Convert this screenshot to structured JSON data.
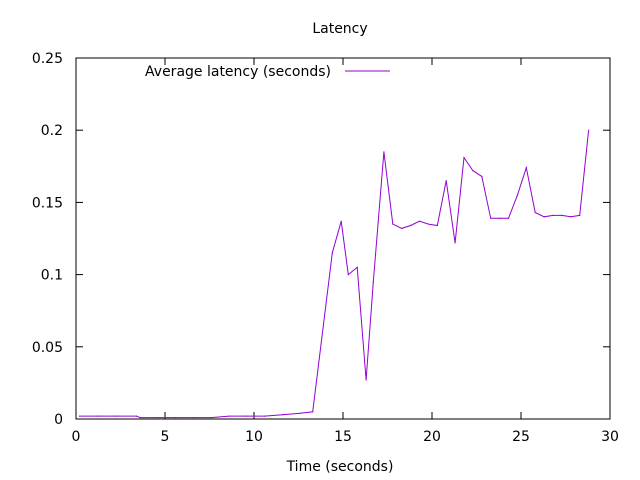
{
  "chart_data": {
    "type": "line",
    "title": "Latency",
    "xlabel": "Time (seconds)",
    "ylabel": "",
    "xlim": [
      0,
      30
    ],
    "ylim": [
      0,
      0.25
    ],
    "xticks": [
      0,
      5,
      10,
      15,
      20,
      25,
      30
    ],
    "xtick_labels": [
      "0",
      "5",
      "10",
      "15",
      "20",
      "25",
      "30"
    ],
    "yticks": [
      0,
      0.05,
      0.1,
      0.15,
      0.2,
      0.25
    ],
    "ytick_labels": [
      "0",
      "0.05",
      "0.1",
      "0.15",
      "0.2",
      "0.25"
    ],
    "grid": false,
    "legend_position": "top-center",
    "series": [
      {
        "name": "Average latency (seconds)",
        "color": "#9400d3",
        "x": [
          0.2,
          1.2,
          2.2,
          3.4,
          3.6,
          4.6,
          5.6,
          6.6,
          7.6,
          8.6,
          9.6,
          10.6,
          11.6,
          12.6,
          13.3,
          14.4,
          14.9,
          15.3,
          15.8,
          16.3,
          16.7,
          17.3,
          17.8,
          18.3,
          18.8,
          19.3,
          19.8,
          20.3,
          20.8,
          21.3,
          21.8,
          22.3,
          22.8,
          23.3,
          23.8,
          24.3,
          24.8,
          25.3,
          25.8,
          26.3,
          26.8,
          27.3,
          27.8,
          28.3,
          28.8
        ],
        "values": [
          0.002,
          0.002,
          0.002,
          0.002,
          0.001,
          0.001,
          0.001,
          0.001,
          0.001,
          0.002,
          0.002,
          0.002,
          0.003,
          0.004,
          0.005,
          0.115,
          0.137,
          0.1,
          0.105,
          0.027,
          0.095,
          0.185,
          0.135,
          0.132,
          0.134,
          0.137,
          0.135,
          0.134,
          0.165,
          0.122,
          0.181,
          0.172,
          0.168,
          0.139,
          0.139,
          0.139,
          0.155,
          0.174,
          0.143,
          0.14,
          0.141,
          0.141,
          0.14,
          0.141,
          0.2
        ]
      }
    ]
  }
}
